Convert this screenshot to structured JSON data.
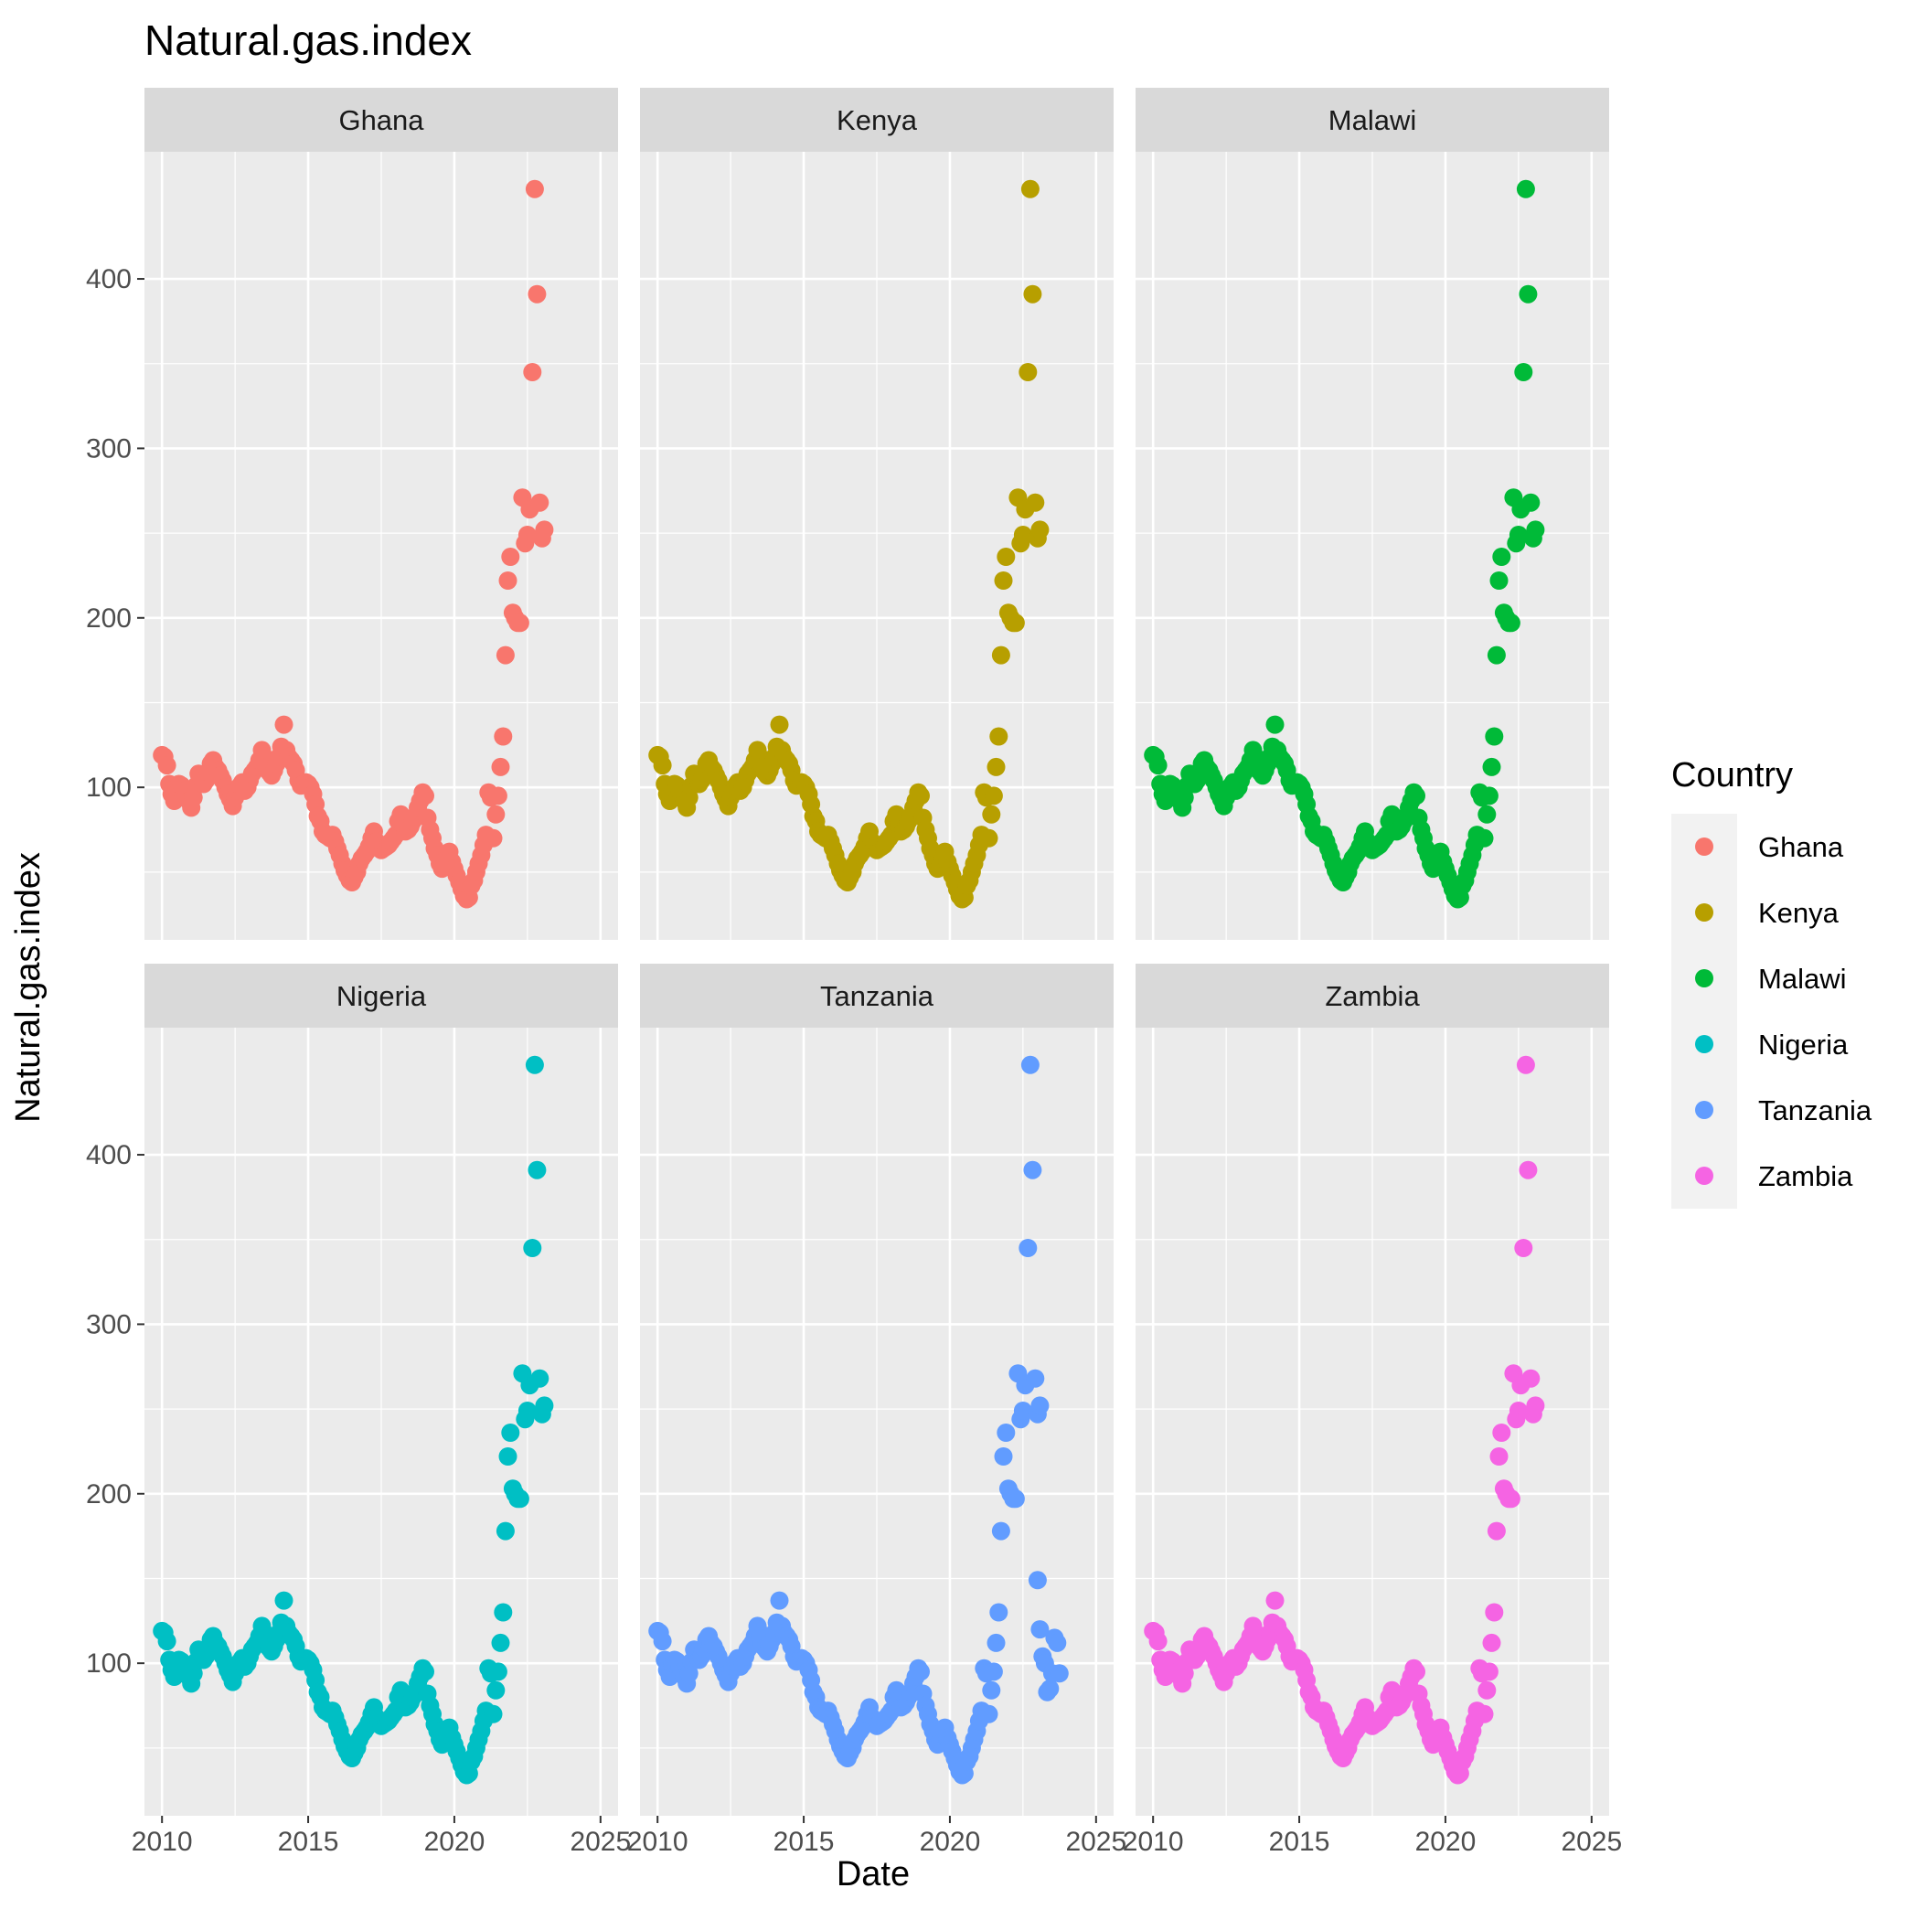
{
  "chart_data": {
    "type": "scatter",
    "title": "Natural.gas.index",
    "xlabel": "Date",
    "ylabel": "Natural.gas.index",
    "xlim": [
      2009.4,
      2025.6
    ],
    "ylim": [
      10,
      475
    ],
    "x_ticks": [
      2010,
      2015,
      2020,
      2025
    ],
    "y_ticks": [
      100,
      200,
      300,
      400
    ],
    "grid": true,
    "facet_layout": {
      "rows": 2,
      "cols": 3
    },
    "legend": {
      "title": "Country",
      "position": "right"
    },
    "series": [
      {
        "name": "Ghana",
        "color": "#F8766D"
      },
      {
        "name": "Kenya",
        "color": "#B79F00"
      },
      {
        "name": "Malawi",
        "color": "#00BA38"
      },
      {
        "name": "Nigeria",
        "color": "#00BFC4"
      },
      {
        "name": "Tanzania",
        "color": "#619CFF"
      },
      {
        "name": "Zambia",
        "color": "#F564E3"
      }
    ],
    "shared_points": [
      [
        2010.0,
        119
      ],
      [
        2010.08,
        118
      ],
      [
        2010.17,
        113
      ],
      [
        2010.25,
        102
      ],
      [
        2010.33,
        96
      ],
      [
        2010.42,
        92
      ],
      [
        2010.5,
        100
      ],
      [
        2010.58,
        102
      ],
      [
        2010.67,
        101
      ],
      [
        2010.75,
        98
      ],
      [
        2010.83,
        95
      ],
      [
        2010.92,
        92
      ],
      [
        2011.0,
        88
      ],
      [
        2011.08,
        94
      ],
      [
        2011.17,
        101
      ],
      [
        2011.25,
        108
      ],
      [
        2011.33,
        106
      ],
      [
        2011.42,
        102
      ],
      [
        2011.5,
        104
      ],
      [
        2011.58,
        109
      ],
      [
        2011.67,
        114
      ],
      [
        2011.75,
        116
      ],
      [
        2011.83,
        112
      ],
      [
        2011.92,
        110
      ],
      [
        2012.0,
        107
      ],
      [
        2012.08,
        104
      ],
      [
        2012.17,
        100
      ],
      [
        2012.25,
        96
      ],
      [
        2012.33,
        93
      ],
      [
        2012.42,
        89
      ],
      [
        2012.5,
        94
      ],
      [
        2012.58,
        98
      ],
      [
        2012.67,
        101
      ],
      [
        2012.75,
        103
      ],
      [
        2012.83,
        98
      ],
      [
        2012.92,
        100
      ],
      [
        2013.0,
        104
      ],
      [
        2013.08,
        108
      ],
      [
        2013.17,
        110
      ],
      [
        2013.25,
        112
      ],
      [
        2013.33,
        116
      ],
      [
        2013.42,
        122
      ],
      [
        2013.5,
        118
      ],
      [
        2013.58,
        112
      ],
      [
        2013.67,
        109
      ],
      [
        2013.75,
        107
      ],
      [
        2013.83,
        110
      ],
      [
        2013.92,
        114
      ],
      [
        2014.0,
        118
      ],
      [
        2014.08,
        124
      ],
      [
        2014.17,
        137
      ],
      [
        2014.25,
        122
      ],
      [
        2014.33,
        118
      ],
      [
        2014.42,
        116
      ],
      [
        2014.5,
        114
      ],
      [
        2014.58,
        110
      ],
      [
        2014.67,
        104
      ],
      [
        2014.75,
        101
      ],
      [
        2014.83,
        102
      ],
      [
        2014.92,
        103
      ],
      [
        2015.0,
        102
      ],
      [
        2015.08,
        100
      ],
      [
        2015.17,
        96
      ],
      [
        2015.25,
        90
      ],
      [
        2015.33,
        83
      ],
      [
        2015.42,
        80
      ],
      [
        2015.5,
        74
      ],
      [
        2015.58,
        72
      ],
      [
        2015.67,
        71
      ],
      [
        2015.75,
        70
      ],
      [
        2015.83,
        72
      ],
      [
        2015.92,
        68
      ],
      [
        2016.0,
        64
      ],
      [
        2016.08,
        60
      ],
      [
        2016.17,
        55
      ],
      [
        2016.25,
        51
      ],
      [
        2016.33,
        48
      ],
      [
        2016.42,
        45
      ],
      [
        2016.5,
        44
      ],
      [
        2016.58,
        47
      ],
      [
        2016.67,
        50
      ],
      [
        2016.75,
        55
      ],
      [
        2016.83,
        58
      ],
      [
        2016.92,
        60
      ],
      [
        2017.0,
        62
      ],
      [
        2017.08,
        65
      ],
      [
        2017.17,
        70
      ],
      [
        2017.25,
        74
      ],
      [
        2017.33,
        68
      ],
      [
        2017.42,
        65
      ],
      [
        2017.5,
        63
      ],
      [
        2017.58,
        64
      ],
      [
        2017.67,
        65
      ],
      [
        2017.75,
        66
      ],
      [
        2017.83,
        68
      ],
      [
        2017.92,
        70
      ],
      [
        2018.0,
        72
      ],
      [
        2018.08,
        80
      ],
      [
        2018.17,
        84
      ],
      [
        2018.25,
        78
      ],
      [
        2018.33,
        74
      ],
      [
        2018.42,
        75
      ],
      [
        2018.5,
        77
      ],
      [
        2018.58,
        80
      ],
      [
        2018.67,
        83
      ],
      [
        2018.75,
        88
      ],
      [
        2018.83,
        92
      ],
      [
        2018.92,
        97
      ],
      [
        2019.0,
        95
      ],
      [
        2019.08,
        82
      ],
      [
        2019.17,
        75
      ],
      [
        2019.25,
        70
      ],
      [
        2019.33,
        64
      ],
      [
        2019.42,
        60
      ],
      [
        2019.5,
        55
      ],
      [
        2019.58,
        52
      ],
      [
        2019.67,
        54
      ],
      [
        2019.75,
        58
      ],
      [
        2019.83,
        62
      ],
      [
        2019.92,
        56
      ],
      [
        2020.0,
        52
      ],
      [
        2020.08,
        48
      ],
      [
        2020.17,
        44
      ],
      [
        2020.25,
        40
      ],
      [
        2020.33,
        36
      ],
      [
        2020.42,
        34
      ],
      [
        2020.5,
        35
      ],
      [
        2020.58,
        42
      ],
      [
        2020.67,
        45
      ],
      [
        2020.75,
        50
      ],
      [
        2020.83,
        55
      ],
      [
        2020.92,
        60
      ],
      [
        2021.0,
        66
      ],
      [
        2021.08,
        72
      ],
      [
        2021.17,
        97
      ],
      [
        2021.25,
        94
      ],
      [
        2021.33,
        70
      ],
      [
        2021.42,
        84
      ],
      [
        2021.5,
        95
      ],
      [
        2021.58,
        112
      ],
      [
        2021.67,
        130
      ],
      [
        2021.75,
        178
      ],
      [
        2021.83,
        222
      ],
      [
        2021.92,
        236
      ],
      [
        2022.0,
        203
      ],
      [
        2022.08,
        200
      ],
      [
        2022.17,
        197
      ],
      [
        2022.25,
        197
      ],
      [
        2022.33,
        271
      ],
      [
        2022.42,
        244
      ],
      [
        2022.5,
        249
      ],
      [
        2022.58,
        264
      ],
      [
        2022.67,
        345
      ],
      [
        2022.75,
        453
      ],
      [
        2022.83,
        391
      ],
      [
        2022.92,
        268
      ],
      [
        2023.0,
        247
      ],
      [
        2023.08,
        252
      ]
    ],
    "tanzania_extra_points": [
      [
        2023.0,
        149
      ],
      [
        2023.08,
        120
      ],
      [
        2023.17,
        104
      ],
      [
        2023.25,
        100
      ],
      [
        2023.33,
        83
      ],
      [
        2023.42,
        85
      ],
      [
        2023.5,
        94
      ],
      [
        2023.58,
        115
      ],
      [
        2023.67,
        112
      ],
      [
        2023.75,
        94
      ]
    ]
  }
}
